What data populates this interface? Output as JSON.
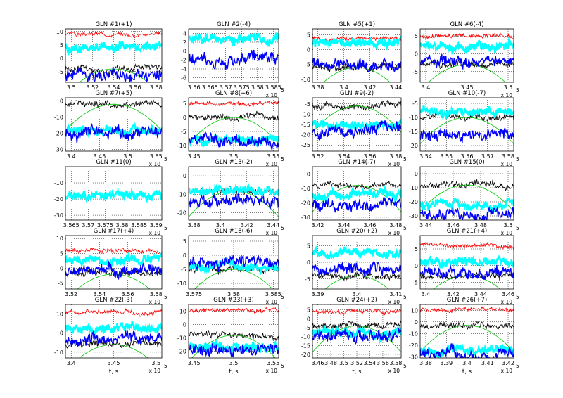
{
  "chart_data": {
    "type": "line",
    "layout": "5x4 grid of subplots",
    "series_colors": {
      "red": "#ff0000",
      "black": "#000000",
      "green": "#00c800",
      "blue": "#0000ff",
      "cyan": "#00ffff"
    },
    "xlabel": "t, s",
    "exponent_base": "x 10",
    "exponent_power": "5",
    "panels": [
      {
        "title": "GLN #1(+1)",
        "xticks": [
          "3.5",
          "3.52",
          "3.54",
          "3.56",
          "3.58"
        ],
        "yticks": [
          "10",
          "5",
          "0",
          "-5"
        ],
        "ylim": [
          -9,
          11
        ],
        "red": 9,
        "black": -4,
        "cyan": 4,
        "blue": -6,
        "show_exp": false
      },
      {
        "title": "GLN #2(-4)",
        "xticks": [
          "3.56",
          "3.565",
          "3.57",
          "3.575",
          "3.58",
          "3.585"
        ],
        "yticks": [
          "4",
          "2",
          "0",
          "-2",
          "-4",
          "-6"
        ],
        "ylim": [
          -7,
          5
        ],
        "cyan": 3,
        "blue": -2,
        "show_exp": true
      },
      {
        "title": "GLN #5(+1)",
        "xticks": [
          "3.38",
          "3.4",
          "3.42",
          "3.44"
        ],
        "yticks": [
          "5",
          "0",
          "-5",
          "-10"
        ],
        "ylim": [
          -11,
          7
        ],
        "red": 4,
        "black": -6,
        "cyan": 2,
        "blue": -5,
        "show_exp": false
      },
      {
        "title": "GLN #6(-4)",
        "xticks": [
          "3.4",
          "3.45",
          "3.5"
        ],
        "yticks": [
          "5",
          "0",
          "-5"
        ],
        "ylim": [
          -8,
          7
        ],
        "red": 5,
        "black": -3,
        "cyan": 2,
        "blue": -2,
        "show_exp": true
      },
      {
        "title": "GLN #7(+5)",
        "xticks": [
          "3.4",
          "3.45",
          "3.5",
          "3.55"
        ],
        "yticks": [
          "0",
          "-10",
          "-20",
          "-30"
        ],
        "ylim": [
          -31,
          2
        ],
        "black": -2,
        "cyan": -18,
        "blue": -20,
        "show_exp": true
      },
      {
        "title": "GLN #8(+6)",
        "xticks": [
          "3.45",
          "3.5",
          "3.55"
        ],
        "yticks": [
          "5",
          "0",
          "-5",
          "-10"
        ],
        "ylim": [
          -12,
          7
        ],
        "red": 5,
        "black": 0,
        "cyan": -8,
        "blue": -9,
        "show_exp": true
      },
      {
        "title": "GLN #9(-2)",
        "xticks": [
          "3.52",
          "3.54",
          "3.56",
          "3.58"
        ],
        "yticks": [
          "-5",
          "-10",
          "-15",
          "-20",
          "-25"
        ],
        "ylim": [
          -28,
          -2
        ],
        "black": -6,
        "cyan": -15,
        "blue": -18,
        "show_exp": true
      },
      {
        "title": "GLN #10(-7)",
        "xticks": [
          "3.54",
          "3.55",
          "3.56",
          "3.57",
          "3.58"
        ],
        "yticks": [
          "-5",
          "-10",
          "-15",
          "-20"
        ],
        "ylim": [
          -22,
          -3
        ],
        "black": -10,
        "cyan": -8,
        "blue": -16,
        "show_exp": true
      },
      {
        "title": "GLN #11(0)",
        "xticks": [
          "3.565",
          "3.57",
          "3.575",
          "3.58",
          "3.585",
          "3.59"
        ],
        "yticks": [
          "-10",
          "-20",
          "-30"
        ],
        "ylim": [
          -33,
          0
        ],
        "cyan": -18,
        "show_exp": true
      },
      {
        "title": "GLN #13(-2)",
        "xticks": [
          "3.38",
          "3.4",
          "3.42",
          "3.44"
        ],
        "yticks": [
          "0",
          "-10",
          "-20"
        ],
        "ylim": [
          -24,
          5
        ],
        "black": -8,
        "cyan": -8,
        "blue": -14,
        "show_exp": true
      },
      {
        "title": "GLN #14(-7)",
        "xticks": [
          "3.42",
          "3.44",
          "3.46",
          "3.48"
        ],
        "yticks": [
          "0",
          "-10",
          "-20",
          "-30"
        ],
        "ylim": [
          -32,
          5
        ],
        "black": -8,
        "cyan": -15,
        "blue": -22,
        "show_exp": true
      },
      {
        "title": "GLN #15(0)",
        "xticks": [
          "3.44",
          "3.46",
          "3.48",
          "3.5"
        ],
        "yticks": [
          "0",
          "-10",
          "-20",
          "-30"
        ],
        "ylim": [
          -33,
          5
        ],
        "black": -8,
        "cyan": -22,
        "blue": -28,
        "show_exp": true
      },
      {
        "title": "GLN #17(+4)",
        "xticks": [
          "3.52",
          "3.54",
          "3.56",
          "3.58"
        ],
        "yticks": [
          "10",
          "5",
          "0",
          "-5"
        ],
        "ylim": [
          -7,
          11
        ],
        "red": 6,
        "black": -2,
        "cyan": 3,
        "blue": -1,
        "show_exp": true
      },
      {
        "title": "GLN #18(-6)",
        "xticks": [
          "3.575",
          "3.58",
          "3.585"
        ],
        "yticks": [
          "5",
          "0",
          "-5",
          "-10"
        ],
        "ylim": [
          -12,
          7
        ],
        "black": -5,
        "cyan": -4,
        "blue": -3,
        "show_exp": true
      },
      {
        "title": "GLN #20(+2)",
        "xticks": [
          "3.39",
          "3.4",
          "3.41"
        ],
        "yticks": [
          "5",
          "0",
          "-5"
        ],
        "ylim": [
          -8,
          8
        ],
        "black": -4,
        "cyan": 3,
        "blue": -2,
        "show_exp": true
      },
      {
        "title": "GLN #21(+4)",
        "xticks": [
          "3.4",
          "3.42",
          "3.44",
          "3.46"
        ],
        "yticks": [
          "5",
          "0",
          "-5"
        ],
        "ylim": [
          -7,
          9
        ],
        "red": 6,
        "black": -3,
        "cyan": 1,
        "blue": -2,
        "show_exp": true
      },
      {
        "title": "GLN #22(-3)",
        "xticks": [
          "3.4",
          "3.45",
          "3.5"
        ],
        "yticks": [
          "10",
          "0",
          "-10"
        ],
        "ylim": [
          -13,
          15
        ],
        "red": 11,
        "black": -6,
        "cyan": 2,
        "blue": -3,
        "show_exp": true
      },
      {
        "title": "GLN #23(+3)",
        "xticks": [
          "3.45",
          "3.5",
          "3.55"
        ],
        "yticks": [
          "10",
          "0",
          "-10",
          "-20"
        ],
        "ylim": [
          -25,
          15
        ],
        "red": 10,
        "black": -8,
        "cyan": -17,
        "blue": -19,
        "show_exp": true
      },
      {
        "title": "GLN #24(+2)",
        "xticks": [
          "3.46",
          "3.48",
          "3.5",
          "3.52",
          "3.54",
          "3.56",
          "3.58"
        ],
        "yticks": [
          "5",
          "0",
          "-5",
          "-10",
          "-15",
          "-20"
        ],
        "ylim": [
          -22,
          8
        ],
        "red": 4,
        "black": -4,
        "cyan": -8,
        "blue": -10,
        "show_exp": true
      },
      {
        "title": "GLN #26(+7)",
        "xticks": [
          "3.38",
          "3.39",
          "3.4",
          "3.41",
          "3.42"
        ],
        "yticks": [
          "10",
          "0",
          "-10",
          "-20",
          "-30"
        ],
        "ylim": [
          -31,
          15
        ],
        "red": 10,
        "black": -3,
        "cyan": -25,
        "blue": -28,
        "show_exp": true
      }
    ]
  }
}
